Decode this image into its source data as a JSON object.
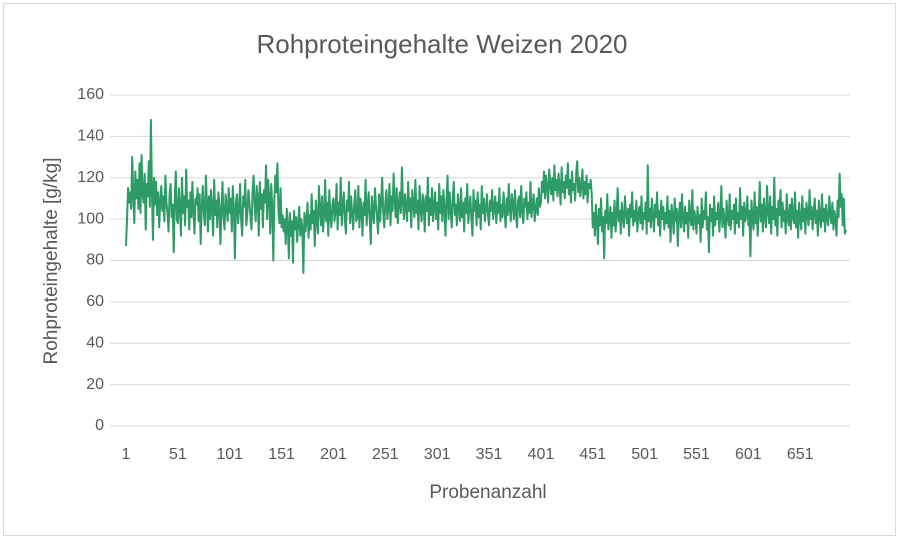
{
  "chart_data": {
    "type": "line",
    "title": "Rohproteingehalte Weizen 2020",
    "x_label": "Probenanzahl",
    "y_label": "Rohproteingehalte [g/kg]",
    "color": "#2e9a66",
    "grid": true,
    "xlim": [
      1,
      699
    ],
    "xticks": [
      1,
      51,
      101,
      151,
      201,
      251,
      301,
      351,
      401,
      451,
      501,
      551,
      601,
      651
    ],
    "ylim": [
      0,
      160
    ],
    "yticks": [
      0,
      20,
      40,
      60,
      80,
      100,
      120,
      140,
      160
    ],
    "x": [
      1,
      2,
      3,
      4,
      5,
      6,
      7,
      8,
      9,
      10,
      11,
      12,
      13,
      14,
      15,
      16,
      17,
      18,
      19,
      20,
      21,
      22,
      23,
      24,
      25,
      26,
      27,
      28,
      29,
      30,
      31,
      32,
      33,
      34,
      35,
      36,
      37,
      38,
      39,
      40,
      41,
      42,
      43,
      44,
      45,
      46,
      47,
      48,
      49,
      50,
      51,
      52,
      53,
      54,
      55,
      56,
      57,
      58,
      59,
      60,
      61,
      62,
      63,
      64,
      65,
      66,
      67,
      68,
      69,
      70,
      71,
      72,
      73,
      74,
      75,
      76,
      77,
      78,
      79,
      80,
      81,
      82,
      83,
      84,
      85,
      86,
      87,
      88,
      89,
      90,
      91,
      92,
      93,
      94,
      95,
      96,
      97,
      98,
      99,
      100,
      101,
      102,
      103,
      104,
      105,
      106,
      107,
      108,
      109,
      110,
      111,
      112,
      113,
      114,
      115,
      116,
      117,
      118,
      119,
      120,
      121,
      122,
      123,
      124,
      125,
      126,
      127,
      128,
      129,
      130,
      131,
      132,
      133,
      134,
      135,
      136,
      137,
      138,
      139,
      140,
      141,
      142,
      143,
      144,
      145,
      146,
      147,
      148,
      149,
      150,
      151,
      152,
      153,
      154,
      155,
      156,
      157,
      158,
      159,
      160,
      161,
      162,
      163,
      164,
      165,
      166,
      167,
      168,
      169,
      170,
      171,
      172,
      173,
      174,
      175,
      176,
      177,
      178,
      179,
      180,
      181,
      182,
      183,
      184,
      185,
      186,
      187,
      188,
      189,
      190,
      191,
      192,
      193,
      194,
      195,
      196,
      197,
      198,
      199,
      200,
      201,
      202,
      203,
      204,
      205,
      206,
      207,
      208,
      209,
      210,
      211,
      212,
      213,
      214,
      215,
      216,
      217,
      218,
      219,
      220,
      221,
      222,
      223,
      224,
      225,
      226,
      227,
      228,
      229,
      230,
      231,
      232,
      233,
      234,
      235,
      236,
      237,
      238,
      239,
      240,
      241,
      242,
      243,
      244,
      245,
      246,
      247,
      248,
      249,
      250,
      251,
      252,
      253,
      254,
      255,
      256,
      257,
      258,
      259,
      260,
      261,
      262,
      263,
      264,
      265,
      266,
      267,
      268,
      269,
      270,
      271,
      272,
      273,
      274,
      275,
      276,
      277,
      278,
      279,
      280,
      281,
      282,
      283,
      284,
      285,
      286,
      287,
      288,
      289,
      290,
      291,
      292,
      293,
      294,
      295,
      296,
      297,
      298,
      299,
      300,
      301,
      302,
      303,
      304,
      305,
      306,
      307,
      308,
      309,
      310,
      311,
      312,
      313,
      314,
      315,
      316,
      317,
      318,
      319,
      320,
      321,
      322,
      323,
      324,
      325,
      326,
      327,
      328,
      329,
      330,
      331,
      332,
      333,
      334,
      335,
      336,
      337,
      338,
      339,
      340,
      341,
      342,
      343,
      344,
      345,
      346,
      347,
      348,
      349,
      350,
      351,
      352,
      353,
      354,
      355,
      356,
      357,
      358,
      359,
      360,
      361,
      362,
      363,
      364,
      365,
      366,
      367,
      368,
      369,
      370,
      371,
      372,
      373,
      374,
      375,
      376,
      377,
      378,
      379,
      380,
      381,
      382,
      383,
      384,
      385,
      386,
      387,
      388,
      389,
      390,
      391,
      392,
      393,
      394,
      395,
      396,
      397,
      398,
      399,
      400,
      401,
      402,
      403,
      404,
      405,
      406,
      407,
      408,
      409,
      410,
      411,
      412,
      413,
      414,
      415,
      416,
      417,
      418,
      419,
      420,
      421,
      422,
      423,
      424,
      425,
      426,
      427,
      428,
      429,
      430,
      431,
      432,
      433,
      434,
      435,
      436,
      437,
      438,
      439,
      440,
      441,
      442,
      443,
      444,
      445,
      446,
      447,
      448,
      449,
      450,
      451,
      452,
      453,
      454,
      455,
      456,
      457,
      458,
      459,
      460,
      461,
      462,
      463,
      464,
      465,
      466,
      467,
      468,
      469,
      470,
      471,
      472,
      473,
      474,
      475,
      476,
      477,
      478,
      479,
      480,
      481,
      482,
      483,
      484,
      485,
      486,
      487,
      488,
      489,
      490,
      491,
      492,
      493,
      494,
      495,
      496,
      497,
      498,
      499,
      500,
      501,
      502,
      503,
      504,
      505,
      506,
      507,
      508,
      509,
      510,
      511,
      512,
      513,
      514,
      515,
      516,
      517,
      518,
      519,
      520,
      521,
      522,
      523,
      524,
      525,
      526,
      527,
      528,
      529,
      530,
      531,
      532,
      533,
      534,
      535,
      536,
      537,
      538,
      539,
      540,
      541,
      542,
      543,
      544,
      545,
      546,
      547,
      548,
      549,
      550,
      551,
      552,
      553,
      554,
      555,
      556,
      557,
      558,
      559,
      560,
      561,
      562,
      563,
      564,
      565,
      566,
      567,
      568,
      569,
      570,
      571,
      572,
      573,
      574,
      575,
      576,
      577,
      578,
      579,
      580,
      581,
      582,
      583,
      584,
      585,
      586,
      587,
      588,
      589,
      590,
      591,
      592,
      593,
      594,
      595,
      596,
      597,
      598,
      599,
      600,
      601,
      602,
      603,
      604,
      605,
      606,
      607,
      608,
      609,
      610,
      611,
      612,
      613,
      614,
      615,
      616,
      617,
      618,
      619,
      620,
      621,
      622,
      623,
      624,
      625,
      626,
      627,
      628,
      629,
      630,
      631,
      632,
      633,
      634,
      635,
      636,
      637,
      638,
      639,
      640,
      641,
      642,
      643,
      644,
      645,
      646,
      647,
      648,
      649,
      650,
      651,
      652,
      653,
      654,
      655,
      656,
      657,
      658,
      659,
      660,
      661,
      662,
      663,
      664,
      665,
      666,
      667,
      668,
      669,
      670,
      671,
      672,
      673,
      674,
      675,
      676,
      677,
      678,
      679,
      680,
      681,
      682,
      683,
      684,
      685,
      686,
      687,
      688,
      689,
      690,
      691,
      692,
      693,
      694,
      695
    ],
    "values": [
      87,
      100,
      115,
      108,
      113,
      105,
      130,
      112,
      98,
      123,
      110,
      119,
      105,
      127,
      103,
      131,
      112,
      108,
      122,
      95,
      117,
      111,
      128,
      106,
      148,
      114,
      90,
      120,
      107,
      118,
      102,
      113,
      96,
      109,
      116,
      104,
      111,
      99,
      121,
      108,
      103,
      94,
      112,
      117,
      101,
      107,
      84,
      110,
      123,
      100,
      98,
      115,
      105,
      92,
      120,
      103,
      111,
      97,
      124,
      106,
      109,
      95,
      113,
      101,
      118,
      104,
      93,
      110,
      107,
      115,
      99,
      112,
      88,
      106,
      116,
      103,
      97,
      121,
      108,
      94,
      111,
      100,
      114,
      105,
      92,
      119,
      102,
      109,
      96,
      113,
      107,
      88,
      104,
      118,
      101,
      95,
      112,
      106,
      99,
      115,
      103,
      110,
      94,
      116,
      105,
      81,
      108,
      112,
      98,
      104,
      117,
      100,
      92,
      111,
      106,
      119,
      97,
      103,
      114,
      108,
      101,
      95,
      113,
      121,
      107,
      99,
      116,
      110,
      92,
      118,
      105,
      112,
      96,
      114,
      108,
      126,
      100,
      119,
      111,
      93,
      117,
      106,
      80,
      109,
      121,
      113,
      127,
      104,
      98,
      115,
      96,
      102,
      94,
      100,
      88,
      105,
      97,
      81,
      103,
      92,
      99,
      79,
      104,
      95,
      101,
      89,
      98,
      106,
      92,
      100,
      96,
      74,
      103,
      94,
      99,
      108,
      91,
      102,
      95,
      112,
      98,
      104,
      87,
      109,
      100,
      93,
      116,
      105,
      97,
      111,
      94,
      103,
      119,
      99,
      108,
      92,
      114,
      101,
      96,
      107,
      110,
      99,
      104,
      117,
      95,
      108,
      102,
      120,
      97,
      106,
      113,
      100,
      93,
      109,
      104,
      118,
      98,
      111,
      103,
      95,
      107,
      114,
      99,
      101,
      116,
      96,
      110,
      105,
      92,
      108,
      102,
      119,
      97,
      106,
      113,
      100,
      88,
      111,
      104,
      98,
      115,
      107,
      101,
      93,
      112,
      99,
      109,
      120,
      103,
      96,
      108,
      114,
      100,
      106,
      117,
      97,
      111,
      104,
      122,
      109,
      101,
      115,
      98,
      107,
      113,
      103,
      125,
      108,
      100,
      112,
      106,
      99,
      118,
      104,
      110,
      96,
      114,
      107,
      101,
      119,
      103,
      109,
      95,
      116,
      105,
      99,
      112,
      108,
      94,
      111,
      104,
      120,
      97,
      110,
      102,
      115,
      99,
      106,
      113,
      100,
      108,
      95,
      117,
      103,
      111,
      99,
      114,
      106,
      92,
      109,
      121,
      100,
      113,
      104,
      96,
      110,
      118,
      102,
      107,
      97,
      112,
      105,
      99,
      115,
      101,
      108,
      94,
      110,
      103,
      117,
      98,
      106,
      111,
      100,
      92,
      114,
      104,
      109,
      97,
      113,
      101,
      107,
      95,
      116,
      103,
      110,
      99,
      105,
      112,
      102,
      97,
      109,
      104,
      114,
      100,
      106,
      111,
      98,
      108,
      103,
      115,
      99,
      107,
      101,
      113,
      104,
      96,
      110,
      102,
      117,
      105,
      99,
      112,
      107,
      100,
      114,
      103,
      96,
      109,
      111,
      101,
      116,
      104,
      98,
      110,
      106,
      113,
      100,
      108,
      103,
      118,
      101,
      107,
      112,
      99,
      105,
      110,
      102,
      115,
      106,
      108,
      118,
      113,
      123,
      110,
      121,
      115,
      108,
      124,
      117,
      112,
      120,
      109,
      126,
      114,
      119,
      111,
      122,
      116,
      107,
      125,
      113,
      118,
      110,
      121,
      115,
      127,
      112,
      119,
      108,
      123,
      114,
      117,
      109,
      122,
      128,
      113,
      120,
      111,
      116,
      124,
      110,
      118,
      112,
      121,
      108,
      117,
      115,
      119,
      112,
      96,
      103,
      92,
      107,
      99,
      88,
      105,
      97,
      110,
      94,
      101,
      81,
      104,
      98,
      112,
      95,
      100,
      106,
      91,
      103,
      97,
      109,
      94,
      102,
      115,
      99,
      104,
      93,
      108,
      100,
      96,
      111,
      103,
      98,
      105,
      92,
      107,
      101,
      113,
      97,
      104,
      99,
      109,
      94,
      102,
      106,
      98,
      111,
      95,
      103,
      100,
      108,
      93,
      126,
      99,
      105,
      96,
      110,
      102,
      94,
      107,
      101,
      113,
      97,
      104,
      92,
      109,
      100,
      106,
      95,
      103,
      98,
      111,
      96,
      104,
      89,
      107,
      101,
      93,
      110,
      99,
      105,
      87,
      102,
      108,
      96,
      112,
      100,
      94,
      106,
      98,
      103,
      91,
      109,
      101,
      97,
      114,
      95,
      104,
      100,
      93,
      106,
      98,
      102,
      89,
      110,
      96,
      104,
      100,
      113,
      95,
      101,
      84,
      107,
      99,
      105,
      92,
      111,
      97,
      103,
      100,
      108,
      94,
      102,
      116,
      96,
      105,
      99,
      91,
      109,
      101,
      97,
      112,
      95,
      104,
      100,
      107,
      93,
      110,
      98,
      103,
      96,
      115,
      100,
      106,
      92,
      108,
      99,
      102,
      111,
      97,
      104,
      82,
      109,
      100,
      95,
      113,
      98,
      106,
      92,
      103,
      118,
      99,
      107,
      94,
      110,
      101,
      96,
      116,
      104,
      98,
      111,
      93,
      106,
      100,
      120,
      97,
      105,
      92,
      109,
      102,
      114,
      96,
      108,
      99,
      104,
      93,
      112,
      100,
      97,
      107,
      95,
      110,
      101,
      98,
      113,
      96,
      104,
      91,
      108,
      100,
      95,
      111,
      99,
      105,
      93,
      108,
      102,
      97,
      114,
      100,
      106,
      95,
      103,
      110,
      98,
      104,
      92,
      109,
      101,
      96,
      112,
      99,
      105,
      94,
      107,
      100,
      97,
      111,
      103,
      98,
      108,
      95,
      104,
      100,
      92,
      109,
      101,
      122,
      106,
      112,
      97,
      110,
      93,
      95
    ]
  }
}
